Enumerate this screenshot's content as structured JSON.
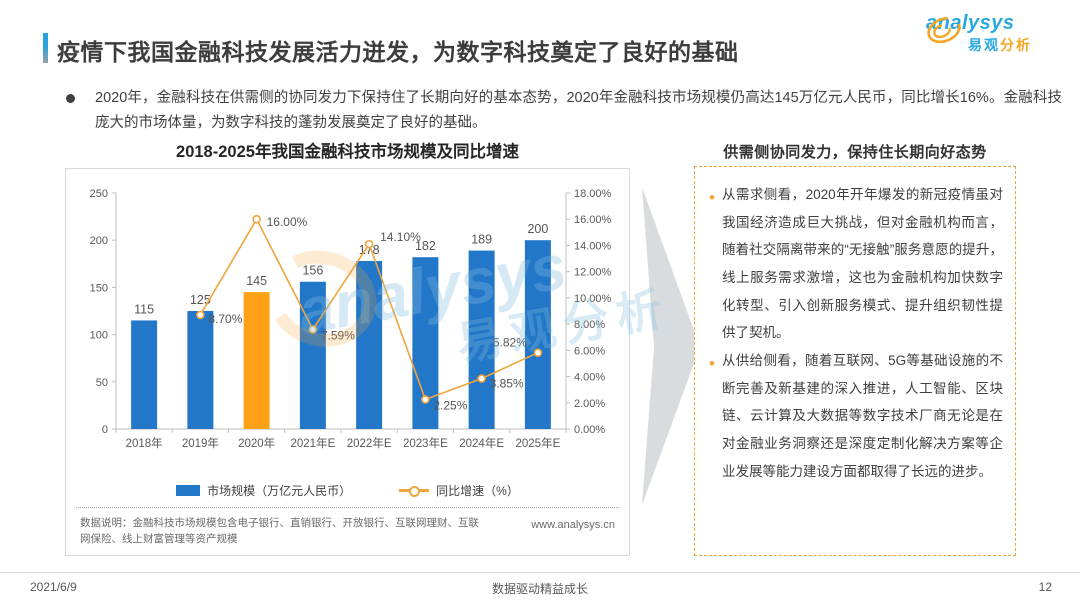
{
  "header": {
    "title": "疫情下我国金融科技发展活力迸发，为数字科技奠定了良好的基础",
    "logo": {
      "en": "analysys",
      "cn_blue": "易观",
      "cn_orange": "分析"
    }
  },
  "summary": {
    "bullet": "2020年，金融科技在供需侧的协同发力下保持住了长期向好的基本态势，2020年金融科技市场规模仍高达145万亿元人民币，同比增长16%。金融科技庞大的市场体量，为数字科技的蓬勃发展奠定了良好的基础。"
  },
  "chart_data": {
    "type": "bar+line",
    "title": "2018-2025年我国金融科技市场规模及同比增速",
    "categories": [
      "2018年",
      "2019年",
      "2020年",
      "2021年E",
      "2022年E",
      "2023年E",
      "2024年E",
      "2025年E"
    ],
    "series": [
      {
        "name": "市场规模（万亿元人民币）",
        "type": "bar",
        "axis": "left",
        "color": "#2377C8",
        "highlight_index": 2,
        "highlight_color": "#FFA117",
        "values": [
          115,
          125,
          145,
          156,
          178,
          182,
          189,
          200
        ]
      },
      {
        "name": "同比增速（%）",
        "type": "line",
        "axis": "right",
        "color": "#F2A43C",
        "values": [
          null,
          8.7,
          16.0,
          7.59,
          14.1,
          2.25,
          3.85,
          5.82
        ],
        "labels": [
          "",
          "8.70%",
          "16.00%",
          "7.59%",
          "14.10%",
          "2.25%",
          "3.85%",
          "5.82%"
        ]
      }
    ],
    "left_axis": {
      "min": 0,
      "max": 250,
      "step": 50,
      "ticks": [
        "0",
        "50",
        "100",
        "150",
        "200",
        "250"
      ]
    },
    "right_axis": {
      "min": 0,
      "max": 18,
      "step": 2,
      "ticks": [
        "0.00%",
        "2.00%",
        "4.00%",
        "6.00%",
        "8.00%",
        "10.00%",
        "12.00%",
        "14.00%",
        "16.00%",
        "18.00%"
      ]
    },
    "legend_position": "bottom",
    "grid": false
  },
  "chart_note": {
    "label": "数据说明：金融科技市场规模包含电子银行、直销银行、开放银行、互联网理财、互联网保险、线上财富管理等资产规模",
    "site": "www.analysys.cn"
  },
  "panel": {
    "header": "供需侧协同发力，保持住长期向好态势",
    "bullets": [
      {
        "text": "从需求侧看，2020年开年爆发的新冠疫情虽对我国经济造成巨大挑战，但对金融机构而言，随着社交隔离带来的“无接触”服务意愿的提升，线上服务需求激增，这也为金融机构加快数字化转型、引入创新服务模式、提升组织韧性提供了契机。"
      },
      {
        "text": "从供给侧看，随着互联网、5G等基础设施的不断完善及新基建的深入推进，人工智能、区块链、云计算及大数据等数字技术厂商无论是在对金融业务洞察还是深度定制化解决方案等企业发展等能力建设方面都取得了长远的进步。"
      }
    ]
  },
  "watermark": {
    "en": "analysys",
    "cn": "易观分析"
  },
  "footer": {
    "date": "2021/6/9",
    "slogan": "数据驱动精益成长",
    "page": "12"
  }
}
